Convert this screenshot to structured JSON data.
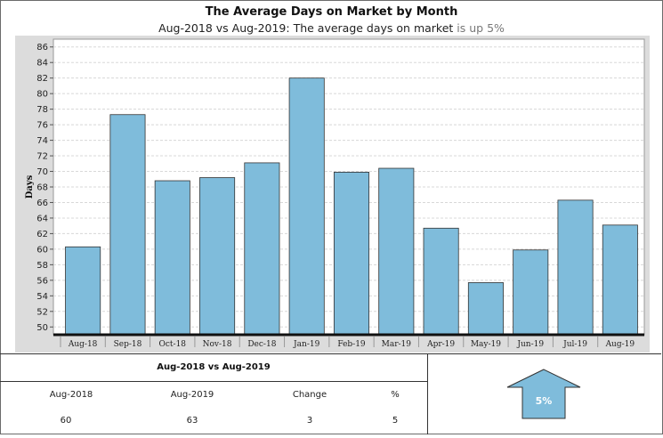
{
  "header": {
    "title": "The Average Days on Market by Month",
    "subtitle_main": "Aug-2018 vs Aug-2019: The average days on market",
    "subtitle_trend": "is up 5%"
  },
  "chart_data": {
    "type": "bar",
    "title": "The Average Days on Market by Month",
    "ylabel": "Days",
    "xlabel": "",
    "categories": [
      "Aug-18",
      "Sep-18",
      "Oct-18",
      "Nov-18",
      "Dec-18",
      "Jan-19",
      "Feb-19",
      "Mar-19",
      "Apr-19",
      "May-19",
      "Jun-19",
      "Jul-19",
      "Aug-19"
    ],
    "values": [
      60.3,
      77.3,
      68.8,
      69.2,
      71.1,
      82.0,
      69.9,
      70.4,
      62.7,
      55.7,
      59.9,
      66.3,
      63.1
    ],
    "ylim": [
      49,
      87
    ],
    "yticks": [
      50,
      52,
      54,
      56,
      58,
      60,
      62,
      64,
      66,
      68,
      70,
      72,
      74,
      76,
      78,
      80,
      82,
      84,
      86
    ],
    "grid": true,
    "colors": {
      "bar": "#7fbcdb",
      "bar_edge": "#333333",
      "panel": "#dcdcdc",
      "grid": "#d8d8d8"
    }
  },
  "summary": {
    "title": "Aug-2018 vs Aug-2019",
    "headers": [
      "Aug-2018",
      "Aug-2019",
      "Change",
      "%"
    ],
    "values": [
      "60",
      "63",
      "3",
      "5"
    ]
  },
  "indicator": {
    "label": "5%",
    "direction": "up",
    "color": "#7fbcdb"
  }
}
